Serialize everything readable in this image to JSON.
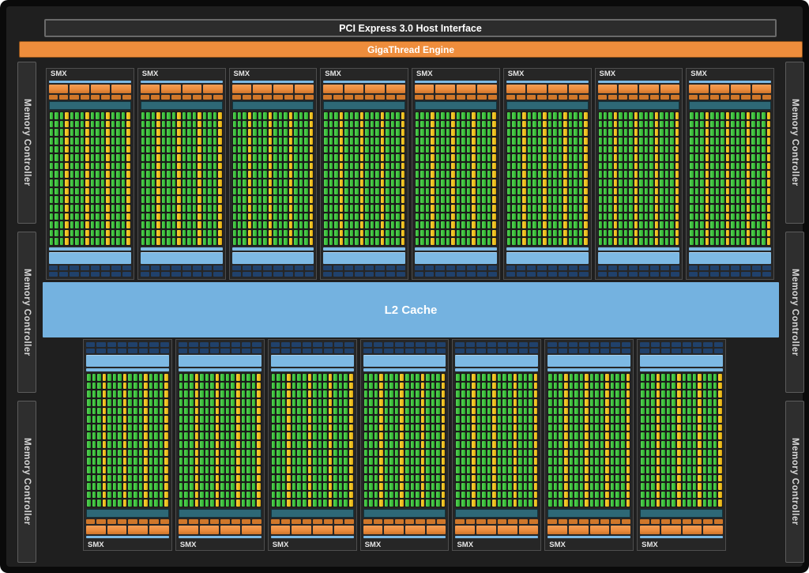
{
  "diagram": {
    "title_bars": {
      "pcie": "PCI Express 3.0 Host Interface",
      "gigathread": "GigaThread Engine",
      "l2": "L2 Cache"
    },
    "memory_controller_label": "Memory Controller",
    "memory_controllers": {
      "left_count": 3,
      "right_count": 3
    },
    "smx": {
      "label": "SMX",
      "top_row_count": 8,
      "bottom_row_count": 7,
      "large_orange_blocks_per_row": 4,
      "small_orange_blocks_per_row": 8,
      "navy_blocks_per_row": 8,
      "navy_rows": 2,
      "core_grid": {
        "columns": 16,
        "rows": 16,
        "yellow_column_every": 4
      }
    },
    "colors": {
      "orange": "#ee8d3c",
      "orange_dark": "#cf772a",
      "light_blue": "#7db9e4",
      "l2_blue": "#74b2e0",
      "teal": "#2e6876",
      "core_green": "#3ec23e",
      "core_yellow": "#eec31f",
      "navy": "#20416b"
    }
  }
}
